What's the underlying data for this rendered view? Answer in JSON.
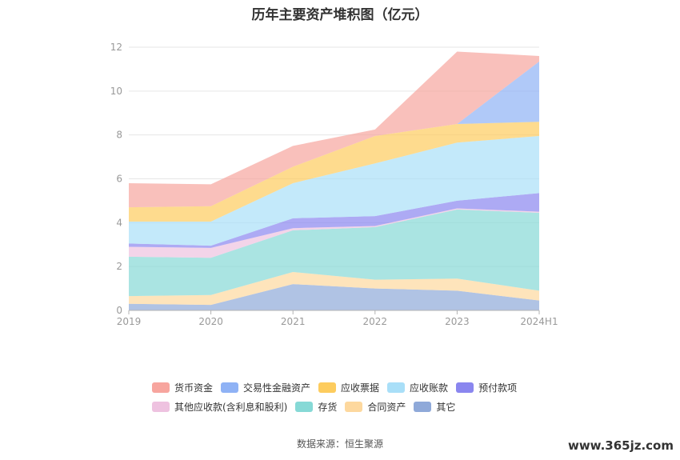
{
  "title": "历年主要资产堆积图（亿元）",
  "source_text": "数据来源：恒生聚源",
  "watermark": "www.365jz.com",
  "chart_data": {
    "type": "area",
    "stacked": true,
    "title": "历年主要资产堆积图（亿元）",
    "x": [
      "2019",
      "2020",
      "2021",
      "2022",
      "2023",
      "2024H1"
    ],
    "ylim": [
      0,
      12
    ],
    "yticks": [
      0,
      2,
      4,
      6,
      8,
      10,
      12
    ],
    "grid": true,
    "legend_position": "bottom",
    "series": [
      {
        "name": "其它",
        "color": "#8fa9d9",
        "values": [
          0.3,
          0.25,
          1.2,
          1.0,
          0.9,
          0.45
        ]
      },
      {
        "name": "合同资产",
        "color": "#fdd89e",
        "values": [
          0.35,
          0.45,
          0.55,
          0.4,
          0.55,
          0.45
        ]
      },
      {
        "name": "存货",
        "color": "#86d9d6",
        "values": [
          1.8,
          1.7,
          1.9,
          2.4,
          3.15,
          3.55
        ]
      },
      {
        "name": "其他应收款(含利息和股利)",
        "color": "#eec2e0",
        "values": [
          0.45,
          0.45,
          0.1,
          0.05,
          0.05,
          0.05
        ]
      },
      {
        "name": "预付款项",
        "color": "#8a86ef",
        "values": [
          0.15,
          0.1,
          0.45,
          0.45,
          0.35,
          0.85
        ]
      },
      {
        "name": "应收账款",
        "color": "#a9dff8",
        "values": [
          1.0,
          1.1,
          1.6,
          2.4,
          2.65,
          2.6
        ]
      },
      {
        "name": "应收票据",
        "color": "#fdcc5e",
        "values": [
          0.65,
          0.7,
          0.75,
          1.25,
          0.85,
          0.65
        ]
      },
      {
        "name": "交易性金融资产",
        "color": "#8fb2f5",
        "values": [
          0,
          0,
          0,
          0,
          0,
          2.75
        ]
      },
      {
        "name": "货币资金",
        "color": "#f7a59e",
        "values": [
          1.1,
          1.0,
          0.95,
          0.3,
          3.3,
          0.25
        ]
      }
    ]
  },
  "legend_rows": [
    [
      "货币资金",
      "交易性金融资产",
      "应收票据",
      "应收账款",
      "预付款项"
    ],
    [
      "其他应收款(含利息和股利)",
      "存货",
      "合同资产",
      "其它"
    ]
  ]
}
